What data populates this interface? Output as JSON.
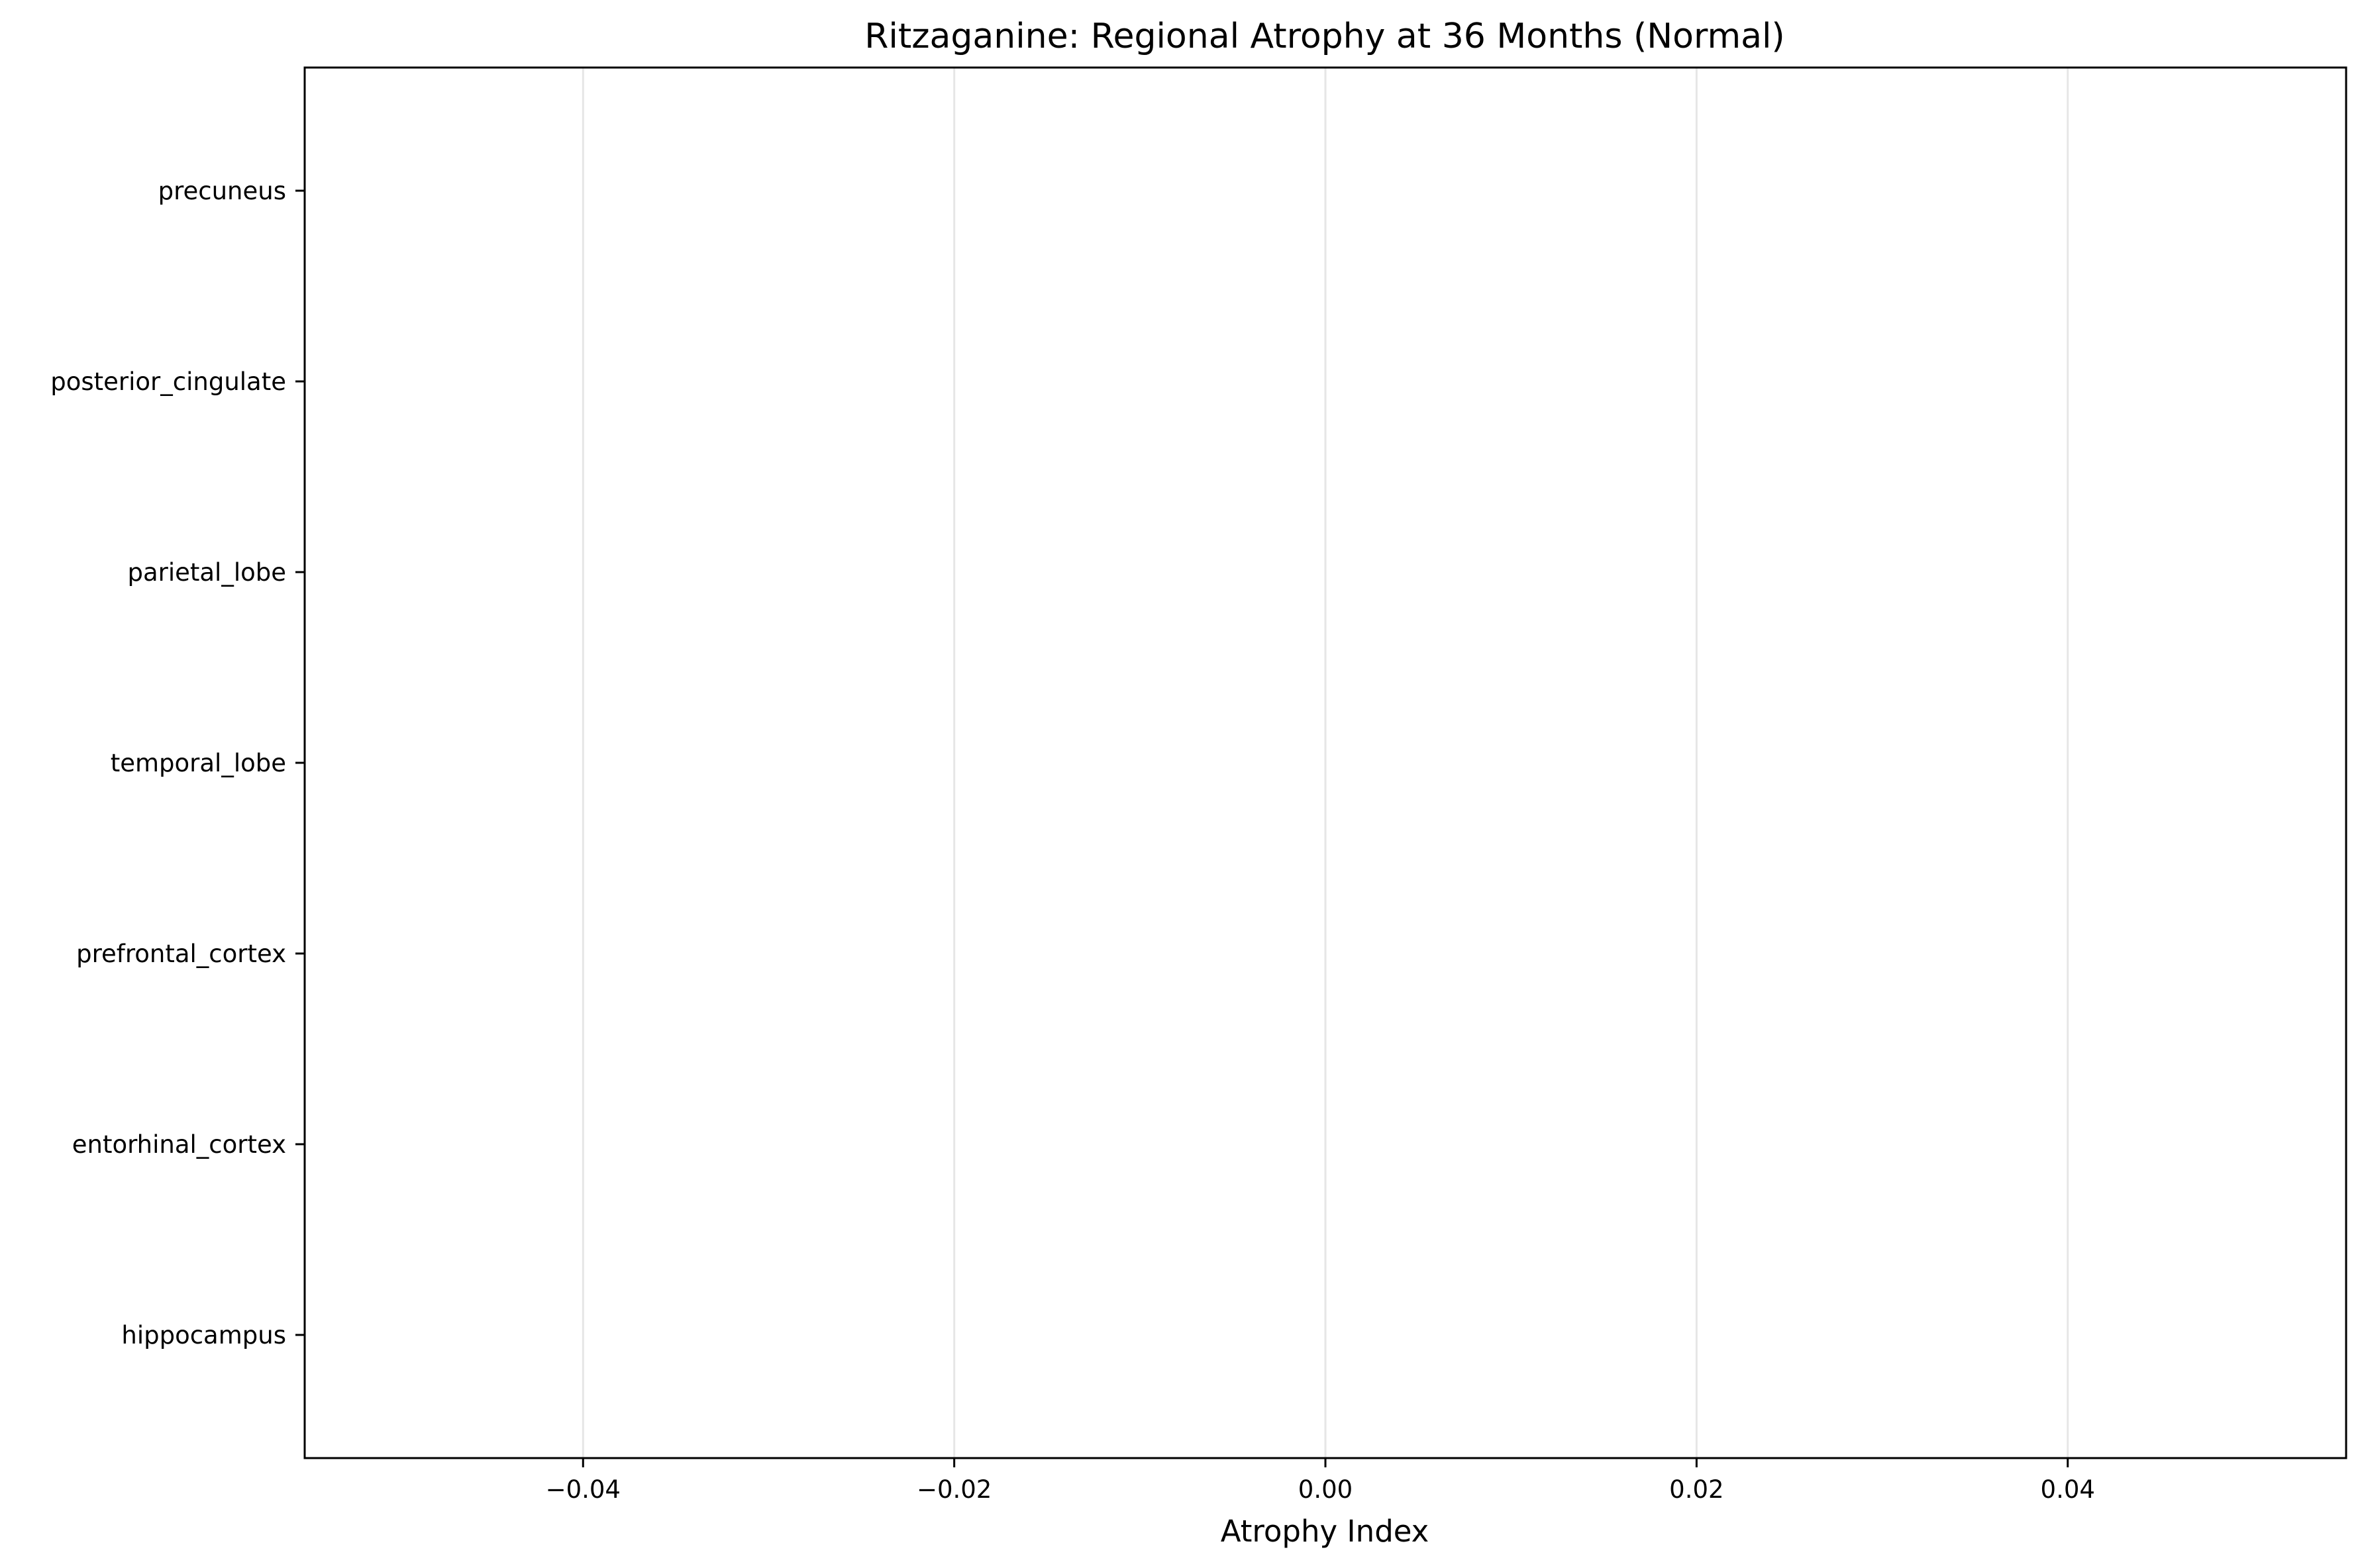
{
  "chart_data": {
    "type": "bar",
    "orientation": "horizontal",
    "title": "Ritzaganine: Regional Atrophy at 36 Months (Normal)",
    "xlabel": "Atrophy Index",
    "ylabel": "",
    "categories": [
      "hippocampus",
      "entorhinal_cortex",
      "prefrontal_cortex",
      "temporal_lobe",
      "parietal_lobe",
      "posterior_cingulate",
      "precuneus"
    ],
    "values": [
      0,
      0,
      0,
      0,
      0,
      0,
      0
    ],
    "xlim": [
      -0.055,
      0.055
    ],
    "xticks": [
      -0.04,
      -0.02,
      0.0,
      0.02,
      0.04
    ],
    "xtick_labels": [
      "−0.04",
      "−0.02",
      "0.00",
      "0.02",
      "0.04"
    ],
    "grid": "x-only",
    "legend": "none"
  }
}
